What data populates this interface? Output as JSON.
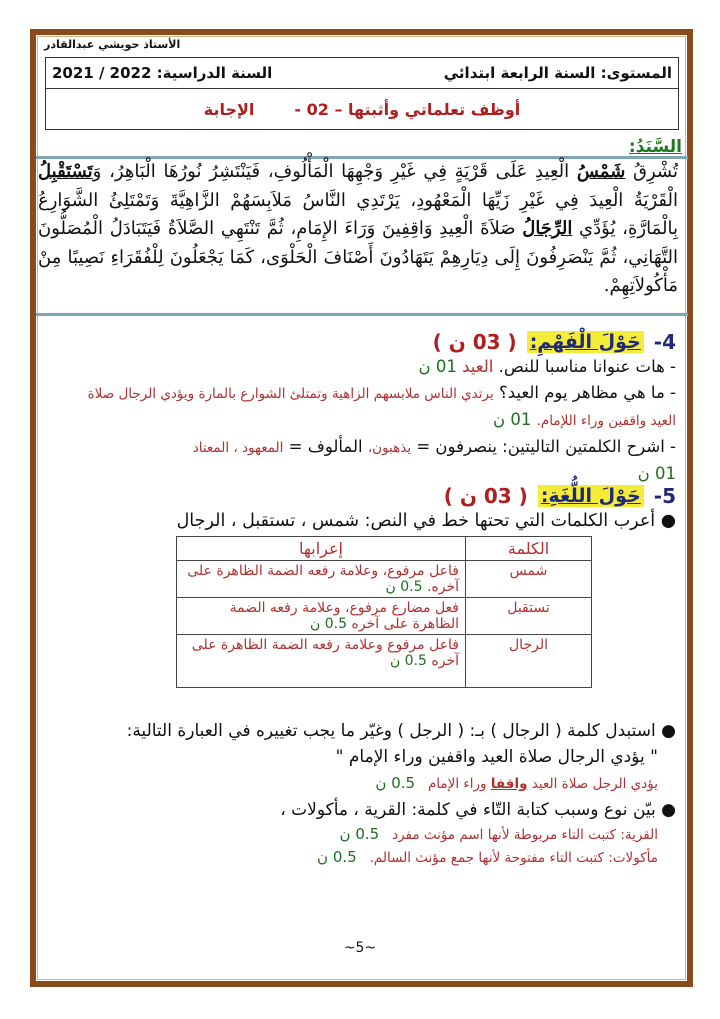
{
  "header": {
    "teacher": "الأستاذ حويشي عبدالقادر",
    "level": "المستوى: السنة الرابعة ابتدائي",
    "year_label": "السنة الدراسية:",
    "year": "2021 / 2022",
    "title": "أوظف تعلماتي وأثبتها – 02 -",
    "answer": "الإجابة"
  },
  "sanad": {
    "label": "السَّنَدُ:",
    "p1": "تُشْرِقُ ",
    "w1": "شَمْسُ",
    "p2": " الْعِيدِ عَلَى قَرْيَةٍ فِي غَيْرِ وَجْهِهَا الْمَأْلُوفِ، فَيَنْتَشِرُ نُورُهَا الْبَاهِرُ، وَ",
    "w2": "تَسْتَقْبِلُ",
    "p3": " الْقَرْيَةُ الْعِيدَ فِي غَيْرِ زَيِّهَا الْمَعْهُودِ، يَرْتَدِي النَّاسُ مَلاَبِسَهُمْ الزَّاهِيَّةَ وَتَمْتَلِئُ الشَّوَارِعُ بِالْمَارَّةِ، يُؤَدِّي ",
    "w3": "الرِّجَالُ",
    "p4": " صَلاَةَ الْعِيدِ وَاقِفِينَ وَرَاءَ الإِمَامِ، ثُمَّ تَنْتَهِي الصَّلاَةُ فَيَتَبَادَلُ الْمُصَلُّونَ التَّهَانِي، ثُمَّ يَنْصَرِفُونَ إِلَى دِيَارِهِمْ يَتَهَادُونَ أَصْنَافَ الْحَلْوَى، كَمَا يَجْعَلُونَ لِلْفُقَرَاءِ نَصِيبًا مِنْ مَأْكُولاَتِهِمْ."
  },
  "s4": {
    "num": "-4",
    "title": "حَوْلَ الْفَهْمِ:",
    "points": "( 03 ن )",
    "q1": "هات عنوانا مناسبا للنص.",
    "a1": "العيد",
    "m1": "01 ن",
    "q2": "ما هي مظاهر يوم العيد؟",
    "a2": "يرتدي الناس ملابسهم الزاهية وتمتلئ الشوارع بالمارة ويؤدي الرجال صلاة العيد واقفين وراء اللإمام.",
    "m2": "01 ن",
    "q3": "اشرح الكلمتين التاليتين: ينصرفون =",
    "a3a": "يذهبون،",
    "q3b": "المألوف =",
    "a3b": "المعهود ، المعتاد",
    "m3": "01 ن"
  },
  "s5": {
    "num": "-5",
    "title": "حَوْلَ اللُّغَةِ:",
    "points": "( 03 ن )",
    "q1": "أعرب الكلمات التي تحتها خط في النص: شمس ، تستقبل ، الرجال",
    "table": {
      "col_word": "الكلمة",
      "col_parse": "إعرابها",
      "rows": [
        {
          "word": "شمس",
          "parse": "فاعل مرفوع، وعلامة رفعه الضمة الظاهرة على آخره.",
          "mark": "0.5 ن"
        },
        {
          "word": "تستقبل",
          "parse": "فعل مضارع مرفوع، وعلامة رفعه الضمة الظاهرة على آخره",
          "mark": "0.5 ن"
        },
        {
          "word": "الرجال",
          "parse": "فاعل مرفوع وعلامة رفعه الضمة الظاهرة على آخره",
          "mark": "0.5 ن"
        }
      ]
    },
    "q2": "استبدل كلمة ( الرجال ) بـ: ( الرجل ) وغيّر ما يجب تغييره في العبارة التالية:",
    "q2_quote": "\" يؤدي الرجال صلاة العيد واقفين وراء الإمام \"",
    "a2a": "يؤدي الرجل صلاة العيد",
    "a2b": "واقفا",
    "a2c": "وراء الإمام",
    "m4": "0.5 ن",
    "q3": "بيّن نوع وسبب كتابة التّاء في كلمة: القرية ، مأكولات ،",
    "a3_1_label": "القرية:",
    "a3_1": "كتبت التاء مربوطة لأنها اسم مؤنث مفرد",
    "m5": "0.5 ن",
    "a3_2_label": "مأكولات:",
    "a3_2": "كتبت التاء مفتوحة لأنها جمع مؤنث السالم.",
    "m6": "0.5 ن"
  },
  "page": "~5~",
  "colors": {
    "border": "#8a4a1c",
    "answer": "#b03030",
    "marks": "#1f6e1f",
    "heading": "#1e2a78",
    "highlight": "#f5ec3a"
  }
}
